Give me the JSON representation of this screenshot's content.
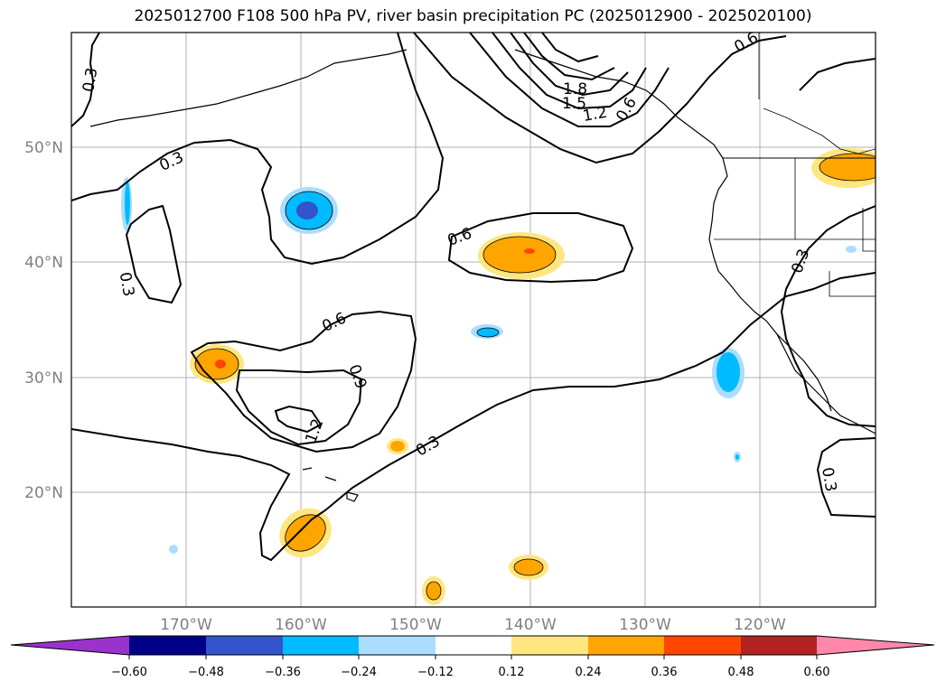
{
  "title": "2025012700 F108 500 hPa PV, river basin precipitation PC (2025012900 - 2025020100)",
  "map": {
    "lat_labels": [
      "50°N",
      "40°N",
      "30°N",
      "20°N"
    ],
    "lon_labels": [
      "170°W",
      "160°W",
      "150°W",
      "140°W",
      "130°W",
      "120°W"
    ],
    "contour_labels": [
      "0.3",
      "0.3",
      "0.3",
      "0.3",
      "0.3",
      "0.3",
      "0.6",
      "0.6",
      "0.6",
      "0.9",
      "1.2",
      "1.2",
      "1.5",
      "1.8",
      "0.6"
    ],
    "colors": {
      "neg_060": "#9933cc",
      "neg_048": "#000088",
      "neg_036": "#3355cc",
      "neg_024": "#00bbff",
      "neg_012": "#aaddff",
      "pos_012": "#ffe680",
      "pos_024": "#ffa500",
      "pos_036": "#ff4500",
      "pos_048": "#b22222",
      "pos_060": "#ff88aa"
    }
  },
  "colorbar": {
    "ticks": [
      "−0.60",
      "−0.48",
      "−0.36",
      "−0.24",
      "−0.12",
      "0.12",
      "0.24",
      "0.36",
      "0.48",
      "0.60"
    ]
  }
}
